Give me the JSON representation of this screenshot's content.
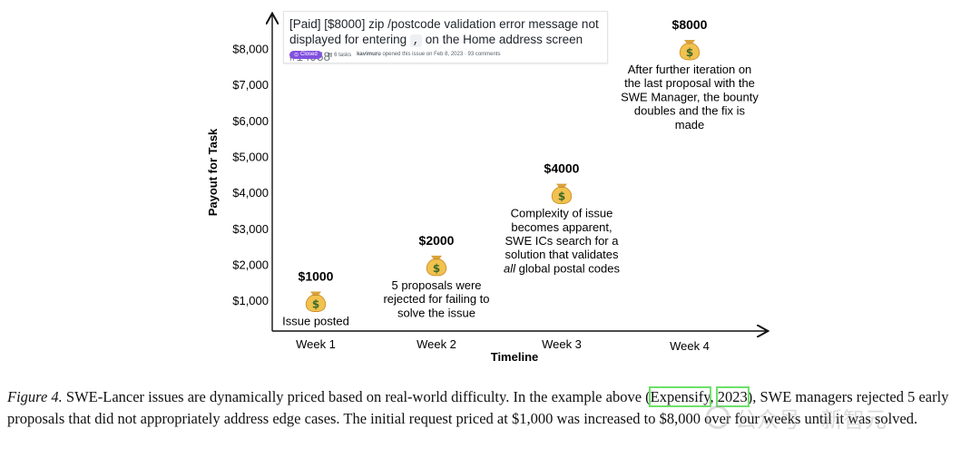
{
  "chart_data": {
    "type": "scatter",
    "title": "",
    "xlabel": "Timeline",
    "ylabel": "Payout for Task",
    "categories": [
      "Week 1",
      "Week 2",
      "Week 3",
      "Week 4"
    ],
    "ylim": [
      0,
      8500
    ],
    "yticks": [
      1000,
      2000,
      3000,
      4000,
      5000,
      6000,
      7000,
      8000
    ],
    "ytick_labels": [
      "$1,000",
      "$2,000",
      "$3,000",
      "$4,000",
      "$5,000",
      "$6,000",
      "$7,000",
      "$8,000"
    ],
    "grid": false,
    "points": [
      {
        "x": "Week 1",
        "y": 1000,
        "label": "$1000",
        "note": [
          "Issue posted"
        ]
      },
      {
        "x": "Week 2",
        "y": 2000,
        "label": "$2000",
        "note": [
          "5 proposals were",
          "rejected for failing to",
          "solve the issue"
        ]
      },
      {
        "x": "Week 3",
        "y": 4000,
        "label": "$4000",
        "note": [
          "Complexity of issue",
          "becomes apparent,",
          "SWE ICs search for a",
          "solution that validates",
          "all global postal codes"
        ]
      },
      {
        "x": "Week 4",
        "y": 8000,
        "label": "$8000",
        "note": [
          "After further iteration on",
          "the last proposal with the",
          "SWE Manager, the bounty",
          "doubles and the fix is",
          "made"
        ]
      }
    ],
    "marker_icon": "money-bag-icon"
  },
  "issue": {
    "title_before": "[Paid] [$8000] zip /postcode validation error message not displayed for entering ",
    "code": ",",
    "title_after": " on the Home address screen ",
    "number": "#14958",
    "status": "Closed",
    "tasks": "6 tasks",
    "author": "kavimuru",
    "meta": "opened this issue on Feb 8, 2023 · 93 comments"
  },
  "caption": {
    "label": "Figure 4.",
    "text1": " SWE-Lancer issues are dynamically priced based on real-world difficulty.  In the example above (",
    "cite_author": "Expensify",
    "cite_sep": ", ",
    "cite_year": "2023",
    "text2": "), SWE managers rejected 5 early proposals that did not appropriately address edge cases. The initial request priced at $1,000 was increased to $8,000 over four weeks until it was solved."
  },
  "watermark": {
    "text": "公众号 · 新智元"
  },
  "colors": {
    "axis": "#111111",
    "badge": "#8250df",
    "cite_box": "#6ee06a",
    "bag": "#f2c14e"
  }
}
